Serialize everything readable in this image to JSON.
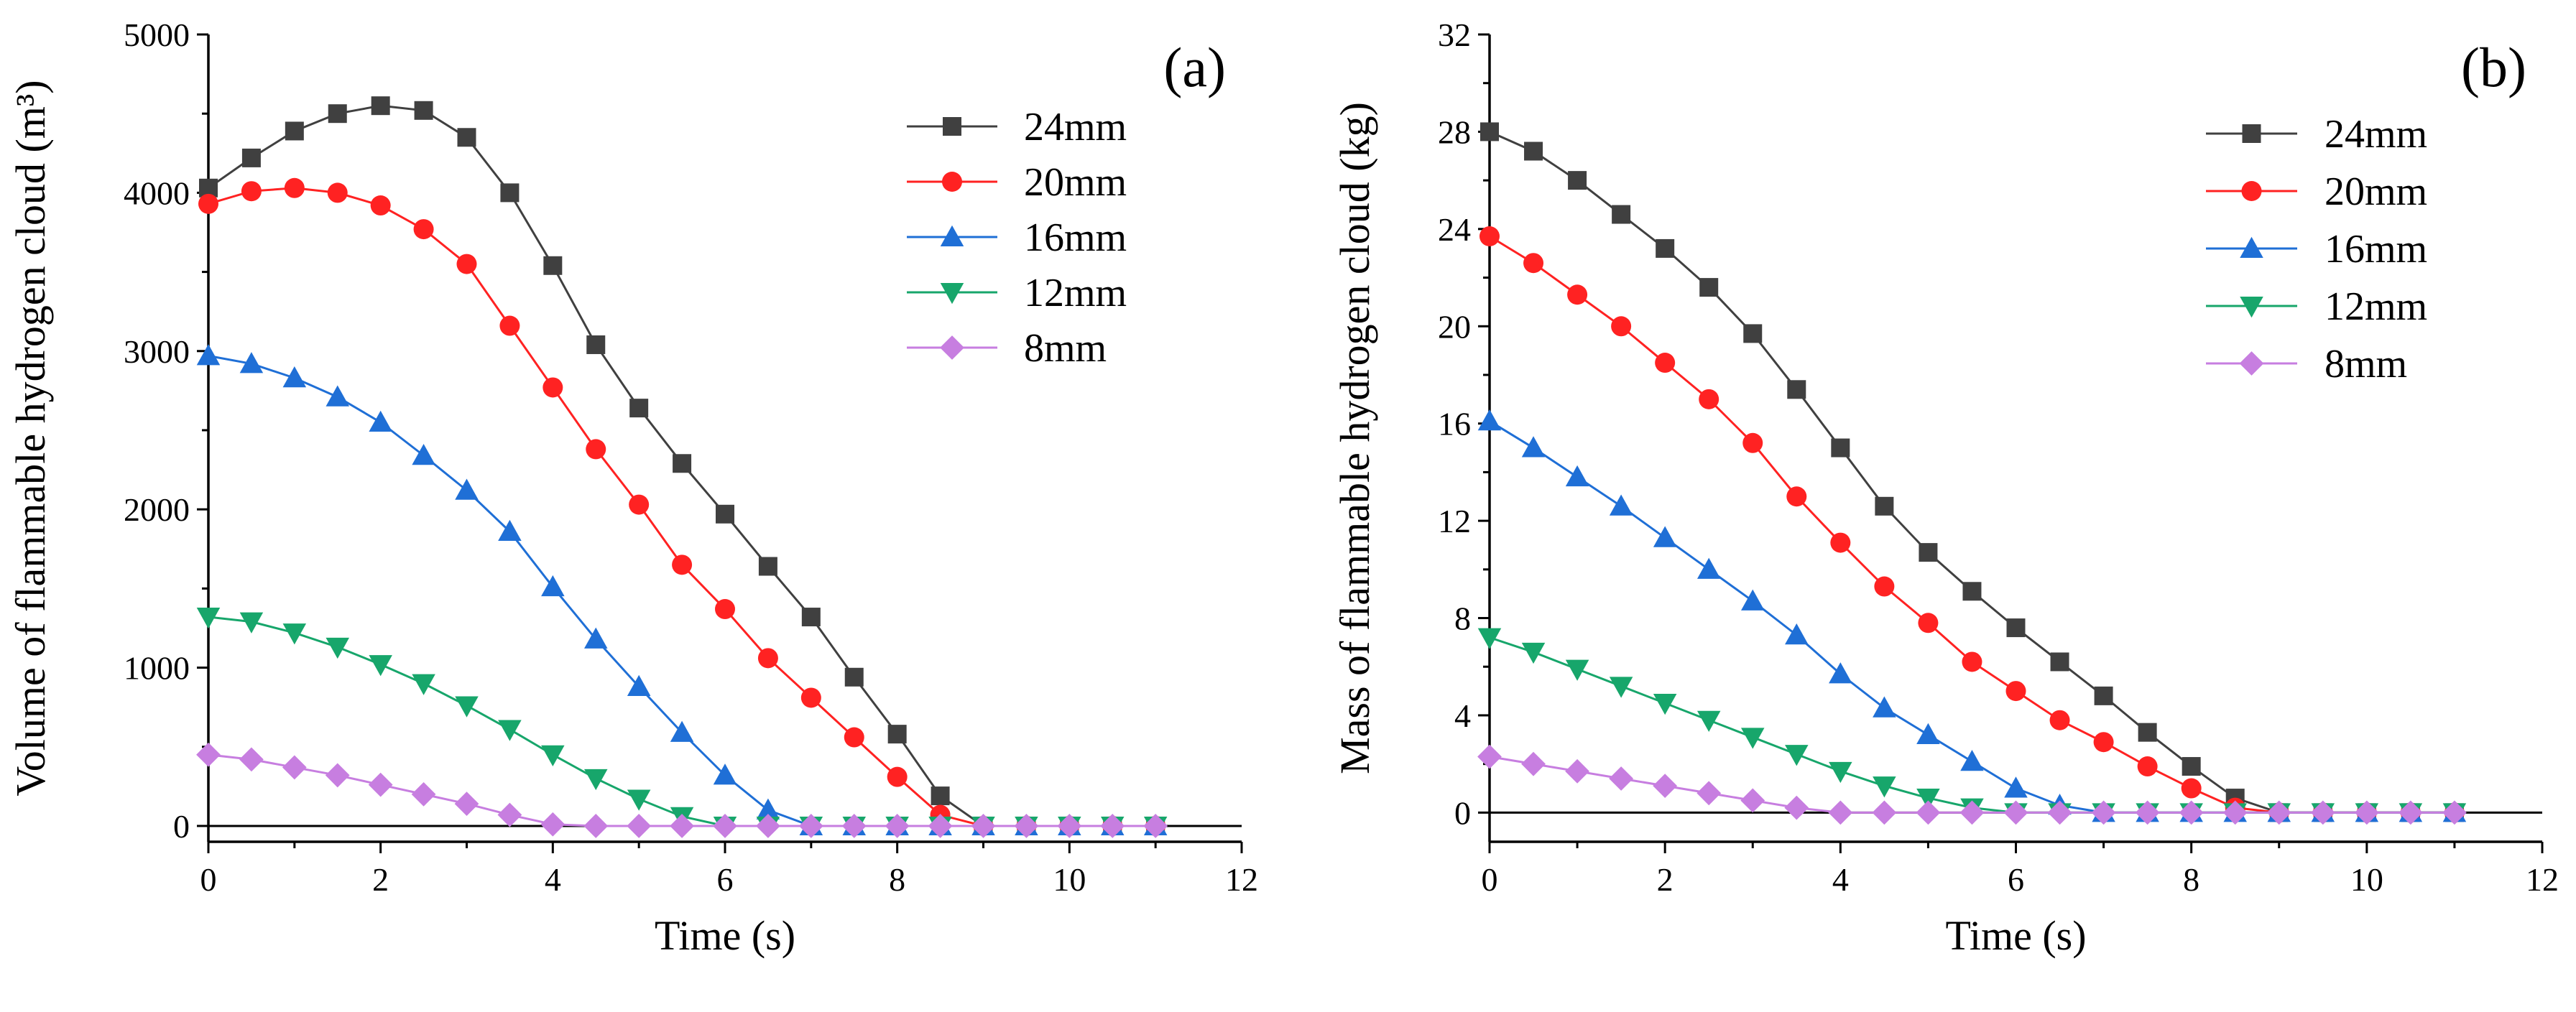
{
  "chart_data": [
    {
      "type": "line",
      "panel_label": "(a)",
      "xlabel": "Time (s)",
      "ylabel": "Volume of flammable hydrogen cloud (m³)",
      "xlim": [
        0,
        12
      ],
      "ylim": [
        -100,
        5000
      ],
      "xticks": [
        0,
        2,
        4,
        6,
        8,
        10,
        12
      ],
      "yticks": [
        0,
        1000,
        2000,
        3000,
        4000,
        5000
      ],
      "legend": "top-right",
      "x": [
        0,
        0.5,
        1,
        1.5,
        2,
        2.5,
        3,
        3.5,
        4,
        4.5,
        5,
        5.5,
        6,
        6.5,
        7,
        7.5,
        8,
        8.5,
        9,
        9.5,
        10,
        10.5,
        11
      ],
      "series": [
        {
          "name": "24mm",
          "color": "#404040",
          "marker": "square",
          "values": [
            4030,
            4220,
            4390,
            4500,
            4550,
            4520,
            4350,
            4000,
            3540,
            3040,
            2640,
            2290,
            1970,
            1640,
            1320,
            940,
            580,
            190,
            0,
            0,
            0,
            0,
            0
          ]
        },
        {
          "name": "20mm",
          "color": "#ff2222",
          "marker": "circle",
          "values": [
            3930,
            4010,
            4030,
            4000,
            3920,
            3770,
            3550,
            3160,
            2770,
            2380,
            2030,
            1650,
            1370,
            1060,
            810,
            560,
            310,
            70,
            0,
            0,
            0,
            0,
            0
          ]
        },
        {
          "name": "16mm",
          "color": "#1f6fd6",
          "marker": "triangle-up",
          "values": [
            2970,
            2920,
            2830,
            2710,
            2550,
            2340,
            2120,
            1860,
            1510,
            1180,
            880,
            590,
            320,
            100,
            0,
            0,
            0,
            0,
            0,
            0,
            0,
            0,
            0
          ]
        },
        {
          "name": "12mm",
          "color": "#17a66b",
          "marker": "triangle-down",
          "values": [
            1320,
            1290,
            1220,
            1130,
            1020,
            900,
            760,
            610,
            450,
            300,
            170,
            60,
            0,
            0,
            0,
            0,
            0,
            0,
            0,
            0,
            0,
            0,
            0
          ]
        },
        {
          "name": "8mm",
          "color": "#c77ee0",
          "marker": "diamond",
          "values": [
            450,
            420,
            370,
            320,
            260,
            200,
            140,
            70,
            10,
            0,
            0,
            0,
            0,
            0,
            0,
            0,
            0,
            0,
            0,
            0,
            0,
            0,
            0
          ]
        }
      ]
    },
    {
      "type": "line",
      "panel_label": "(b)",
      "xlabel": "Time (s)",
      "ylabel": "Mass of flammable hydrogen cloud (kg)",
      "xlim": [
        0,
        12
      ],
      "ylim": [
        -1.2,
        32
      ],
      "xticks": [
        0,
        2,
        4,
        6,
        8,
        10,
        12
      ],
      "yticks": [
        0,
        4,
        8,
        12,
        16,
        20,
        24,
        28,
        32
      ],
      "legend": "top-right",
      "x": [
        0,
        0.5,
        1,
        1.5,
        2,
        2.5,
        3,
        3.5,
        4,
        4.5,
        5,
        5.5,
        6,
        6.5,
        7,
        7.5,
        8,
        8.5,
        9,
        9.5,
        10,
        10.5,
        11
      ],
      "series": [
        {
          "name": "24mm",
          "color": "#404040",
          "marker": "square",
          "values": [
            28.0,
            27.2,
            26.0,
            24.6,
            23.2,
            21.6,
            19.7,
            17.4,
            15.0,
            12.6,
            10.7,
            9.1,
            7.6,
            6.2,
            4.8,
            3.3,
            1.9,
            0.6,
            0,
            0,
            0,
            0,
            0
          ]
        },
        {
          "name": "20mm",
          "color": "#ff2222",
          "marker": "circle",
          "values": [
            23.7,
            22.6,
            21.3,
            20.0,
            18.5,
            17.0,
            15.2,
            13.0,
            11.1,
            9.3,
            7.8,
            6.2,
            5.0,
            3.8,
            2.9,
            1.9,
            1.0,
            0.2,
            0,
            0,
            0,
            0,
            0
          ]
        },
        {
          "name": "16mm",
          "color": "#1f6fd6",
          "marker": "triangle-up",
          "values": [
            16.1,
            15.0,
            13.8,
            12.6,
            11.3,
            10.0,
            8.7,
            7.3,
            5.7,
            4.3,
            3.2,
            2.1,
            1.0,
            0.3,
            0,
            0,
            0,
            0,
            0,
            0,
            0,
            0,
            0
          ]
        },
        {
          "name": "12mm",
          "color": "#17a66b",
          "marker": "triangle-down",
          "values": [
            7.2,
            6.6,
            5.9,
            5.2,
            4.5,
            3.8,
            3.1,
            2.4,
            1.7,
            1.1,
            0.6,
            0.2,
            0,
            0,
            0,
            0,
            0,
            0,
            0,
            0,
            0,
            0,
            0
          ]
        },
        {
          "name": "8mm",
          "color": "#c77ee0",
          "marker": "diamond",
          "values": [
            2.3,
            2.0,
            1.7,
            1.4,
            1.1,
            0.8,
            0.5,
            0.2,
            0,
            0,
            0,
            0,
            0,
            0,
            0,
            0,
            0,
            0,
            0,
            0,
            0,
            0,
            0
          ]
        }
      ]
    }
  ]
}
